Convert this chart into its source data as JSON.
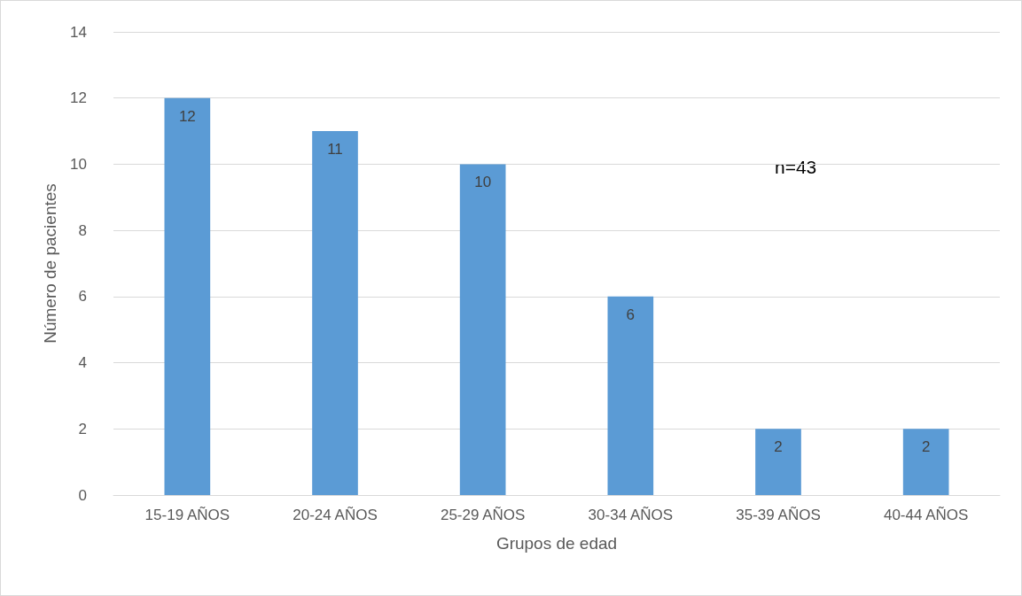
{
  "chart_data": {
    "type": "bar",
    "xlabel": "Grupos de edad",
    "ylabel": "Número de pacientes",
    "categories": [
      "15-19 AÑOS",
      "20-24 AÑOS",
      "25-29 AÑOS",
      "30-34 AÑOS",
      "35-39 AÑOS",
      "40-44 AÑOS"
    ],
    "values": [
      12,
      11,
      10,
      6,
      2,
      2
    ],
    "color": "#5b9bd5",
    "ylim": [
      0,
      14
    ],
    "yticks": [
      0,
      2,
      4,
      6,
      8,
      10,
      12,
      14
    ],
    "grid": "y",
    "data_labels": true,
    "annotations": [
      "n=43"
    ]
  }
}
